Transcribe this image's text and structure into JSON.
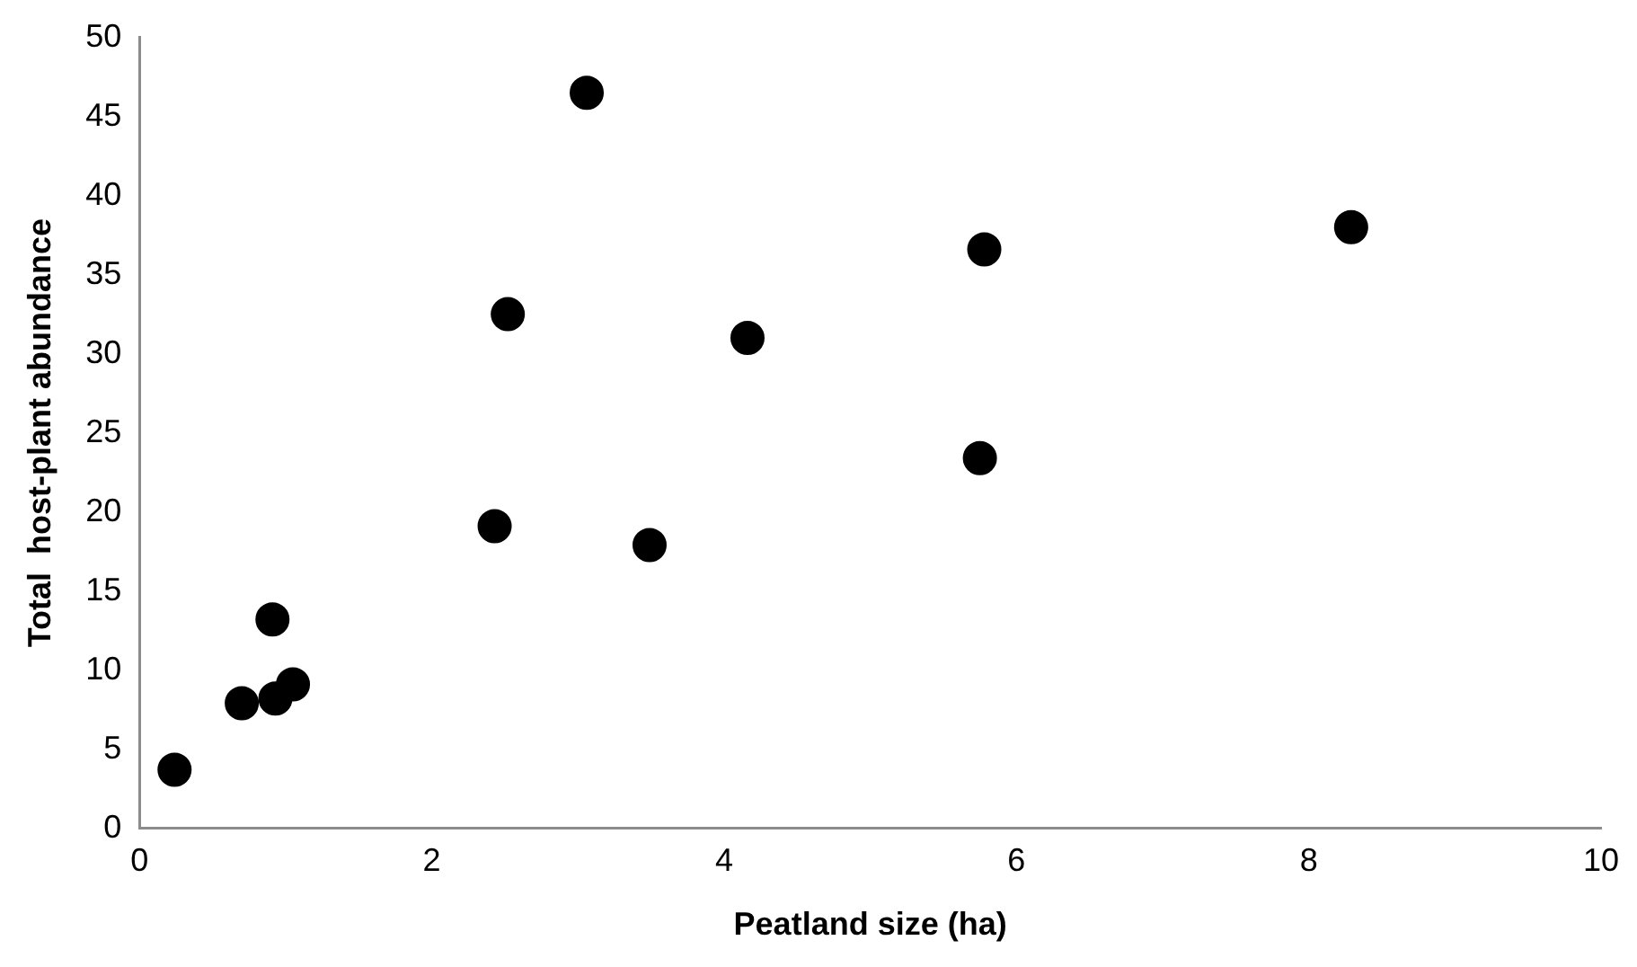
{
  "chart_data": {
    "type": "scatter",
    "xlabel": "Peatland size (ha)",
    "ylabel": "Total  host-plant abundance",
    "series": [
      {
        "color": "#000000",
        "x": [
          0.24,
          0.7,
          0.93,
          1.05,
          0.91,
          2.43,
          2.52,
          3.06,
          3.49,
          4.16,
          5.75,
          5.78,
          8.29
        ],
        "values": [
          3.7,
          7.9,
          8.2,
          9.1,
          13.2,
          19.1,
          32.5,
          46.5,
          17.9,
          31.0,
          23.4,
          36.6,
          38.0
        ]
      }
    ],
    "xlim": [
      0,
      10
    ],
    "xticks": [
      0,
      2,
      4,
      6,
      8,
      10
    ],
    "ylim": [
      0,
      50
    ],
    "yticks": [
      0,
      5,
      10,
      15,
      20,
      25,
      30,
      35,
      40,
      45,
      50
    ],
    "grid": false,
    "legend": false,
    "marker": "circle"
  }
}
